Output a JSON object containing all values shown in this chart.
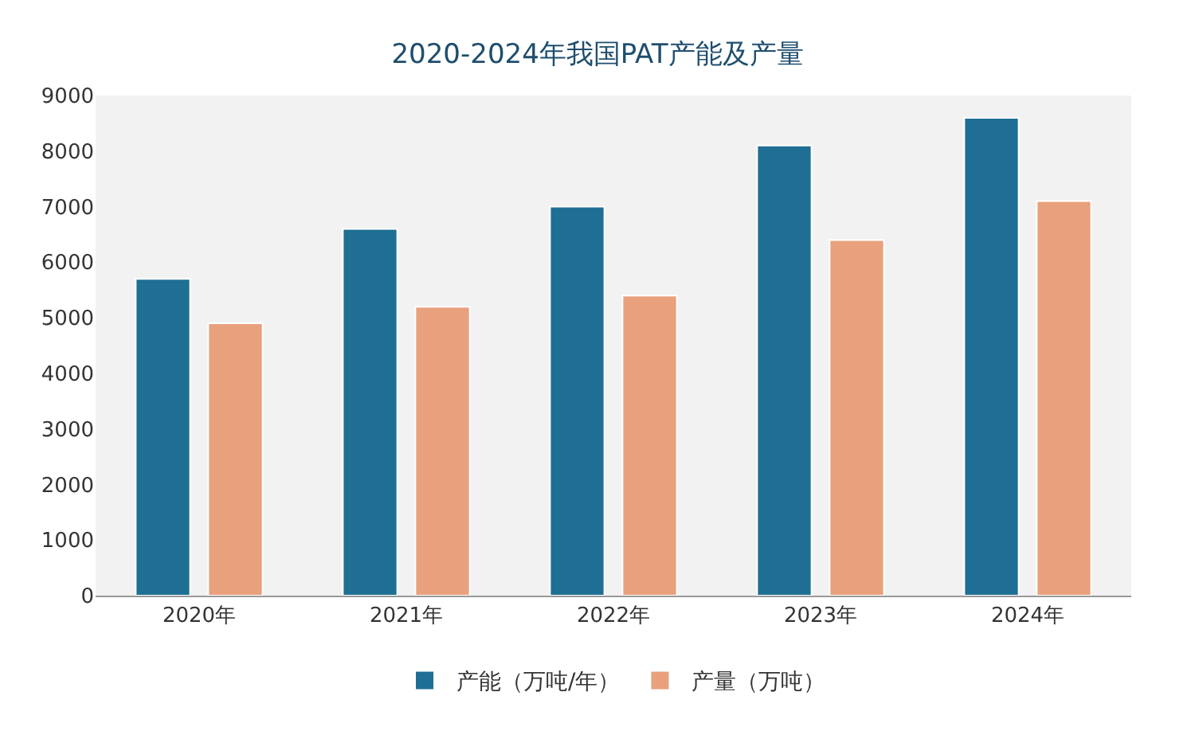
{
  "chart_data": {
    "type": "bar",
    "title": "2020-2024年我国PAT产能及产量",
    "categories": [
      "2020年",
      "2021年",
      "2022年",
      "2023年",
      "2024年"
    ],
    "series": [
      {
        "name": "产能（万吨/年）",
        "color": "#1f6e94",
        "values": [
          5700,
          6600,
          7000,
          8100,
          8600
        ]
      },
      {
        "name": "产量（万吨）",
        "color": "#e9a07c",
        "values": [
          4900,
          5200,
          5400,
          6400,
          7100
        ]
      }
    ],
    "ylim": [
      0,
      9000
    ],
    "yticks": [
      0,
      1000,
      2000,
      3000,
      4000,
      5000,
      6000,
      7000,
      8000,
      9000
    ],
    "grid": false,
    "legend": "bottom"
  }
}
